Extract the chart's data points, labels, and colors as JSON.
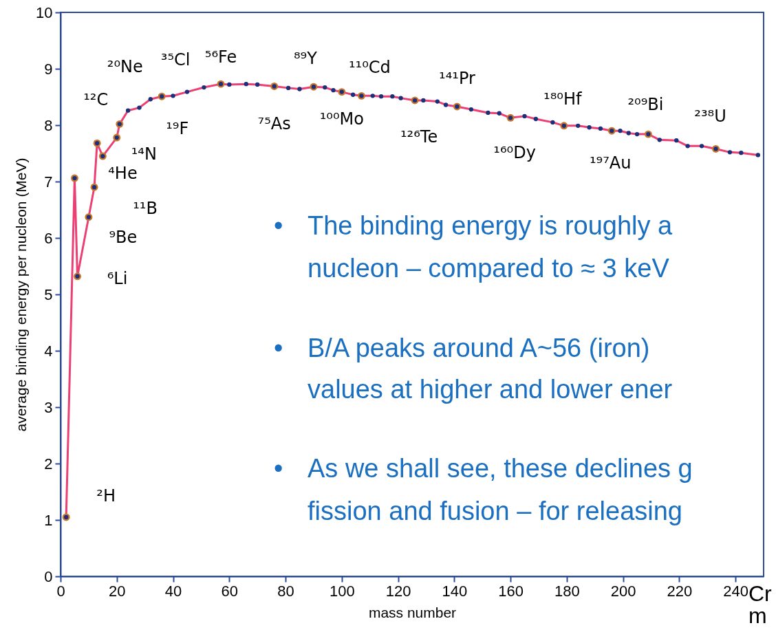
{
  "chart_data": {
    "type": "line",
    "xlabel": "mass number",
    "ylabel": "average binding energy per nucleon (MeV)",
    "xlim": [
      0,
      250
    ],
    "xticks": [
      0,
      20,
      40,
      60,
      80,
      100,
      120,
      140,
      160,
      180,
      200,
      220,
      240
    ],
    "ylim": [
      0,
      10
    ],
    "yticks": [
      0,
      1,
      2,
      3,
      4,
      5,
      6,
      7,
      8,
      9,
      10
    ],
    "series": [
      {
        "color": "#ec3f74",
        "x": [
          2,
          5,
          6,
          10,
          12,
          13,
          15,
          20,
          21,
          24,
          28,
          32,
          36,
          40,
          45,
          51,
          57,
          60,
          66,
          70,
          76,
          81,
          85,
          90,
          94,
          97,
          100,
          104,
          107,
          111,
          114,
          118,
          121,
          126,
          129,
          134,
          137,
          141,
          146,
          152,
          156,
          160,
          165,
          169,
          175,
          179,
          184,
          188,
          192,
          196,
          199,
          202,
          205,
          209,
          213,
          219,
          223,
          228,
          233,
          238,
          242,
          248
        ],
        "values": [
          1.05,
          7.06,
          5.32,
          6.37,
          6.9,
          7.68,
          7.45,
          7.78,
          8.02,
          8.26,
          8.31,
          8.46,
          8.51,
          8.52,
          8.59,
          8.67,
          8.73,
          8.72,
          8.73,
          8.72,
          8.69,
          8.66,
          8.64,
          8.68,
          8.67,
          8.62,
          8.59,
          8.54,
          8.52,
          8.52,
          8.51,
          8.51,
          8.48,
          8.44,
          8.44,
          8.42,
          8.36,
          8.33,
          8.28,
          8.22,
          8.21,
          8.13,
          8.16,
          8.11,
          8.05,
          7.99,
          7.99,
          7.96,
          7.94,
          7.9,
          7.9,
          7.86,
          7.84,
          7.84,
          7.74,
          7.73,
          7.63,
          7.63,
          7.58,
          7.52,
          7.51,
          7.47
        ]
      },
      {
        "type": "scatter",
        "marker": "circle",
        "color": "#c8772e",
        "x": [
          2,
          5,
          6,
          10,
          12,
          13,
          15,
          20,
          21,
          36,
          57,
          76,
          90,
          100,
          107,
          126,
          141,
          160,
          179,
          196,
          209,
          233
        ],
        "values": [
          1.05,
          7.06,
          5.32,
          6.37,
          6.9,
          7.68,
          7.45,
          7.78,
          8.02,
          8.51,
          8.73,
          8.69,
          8.68,
          8.59,
          8.52,
          8.44,
          8.33,
          8.13,
          7.99,
          7.9,
          7.84,
          7.58
        ]
      },
      {
        "type": "scatter",
        "marker": "circle",
        "color": "#1c2f7a",
        "x": [
          2,
          5,
          6,
          10,
          12,
          13,
          15,
          20,
          21,
          24,
          28,
          32,
          36,
          40,
          45,
          51,
          57,
          60,
          66,
          70,
          76,
          81,
          85,
          90,
          94,
          97,
          100,
          104,
          107,
          111,
          114,
          118,
          121,
          126,
          129,
          134,
          137,
          141,
          146,
          152,
          156,
          160,
          165,
          169,
          175,
          179,
          184,
          188,
          192,
          196,
          199,
          202,
          205,
          209,
          213,
          219,
          223,
          228,
          233,
          238,
          242,
          248
        ],
        "values": [
          1.05,
          7.06,
          5.32,
          6.37,
          6.9,
          7.68,
          7.45,
          7.78,
          8.02,
          8.26,
          8.31,
          8.46,
          8.51,
          8.52,
          8.59,
          8.67,
          8.73,
          8.72,
          8.73,
          8.72,
          8.69,
          8.66,
          8.64,
          8.68,
          8.67,
          8.62,
          8.59,
          8.54,
          8.52,
          8.52,
          8.51,
          8.51,
          8.48,
          8.44,
          8.44,
          8.42,
          8.36,
          8.33,
          8.28,
          8.22,
          8.21,
          8.13,
          8.16,
          8.11,
          8.05,
          7.99,
          7.99,
          7.96,
          7.94,
          7.9,
          7.9,
          7.86,
          7.84,
          7.84,
          7.74,
          7.73,
          7.63,
          7.63,
          7.58,
          7.52,
          7.51,
          7.47
        ]
      }
    ],
    "annotations": [
      {
        "text": "²H",
        "x": 2,
        "y": 1.05
      },
      {
        "text": "⁴He",
        "x": 5,
        "y": 7.06
      },
      {
        "text": "⁶Li",
        "x": 6,
        "y": 5.32
      },
      {
        "text": "⁹Be",
        "x": 10,
        "y": 6.37
      },
      {
        "text": "¹¹B",
        "x": 12,
        "y": 6.9
      },
      {
        "text": "¹²C",
        "x": 13,
        "y": 7.68
      },
      {
        "text": "¹⁴N",
        "x": 15,
        "y": 7.45
      },
      {
        "text": "¹⁹F",
        "x": 20,
        "y": 7.78
      },
      {
        "text": "²⁰Ne",
        "x": 21,
        "y": 8.02
      },
      {
        "text": "³⁵Cl",
        "x": 36,
        "y": 8.51
      },
      {
        "text": "⁵⁶Fe",
        "x": 57,
        "y": 8.73
      },
      {
        "text": "⁷⁵As",
        "x": 76,
        "y": 8.69
      },
      {
        "text": "⁸⁹Y",
        "x": 90,
        "y": 8.68
      },
      {
        "text": "¹⁰⁰Mo",
        "x": 100,
        "y": 8.59
      },
      {
        "text": "¹¹⁰Cd",
        "x": 107,
        "y": 8.52
      },
      {
        "text": "¹²⁶Te",
        "x": 126,
        "y": 8.44
      },
      {
        "text": "¹⁴¹Pr",
        "x": 141,
        "y": 8.33
      },
      {
        "text": "¹⁶⁰Dy",
        "x": 160,
        "y": 8.13
      },
      {
        "text": "¹⁸⁰Hf",
        "x": 179,
        "y": 7.99
      },
      {
        "text": "¹⁹⁷Au",
        "x": 196,
        "y": 7.9
      },
      {
        "text": "²⁰⁹Bi",
        "x": 209,
        "y": 7.84
      },
      {
        "text": "²³⁸U",
        "x": 233,
        "y": 7.58
      },
      "•",
      "The binding energy is roughly a",
      "nucleon – compared to ≈ 3 keV",
      "•",
      "B/A peaks around A~56 (iron)",
      "values at higher and lower ener",
      "•",
      "As we shall see, these declines g",
      "fission and fusion – for releasing",
      "Cr",
      "m"
    ]
  }
}
